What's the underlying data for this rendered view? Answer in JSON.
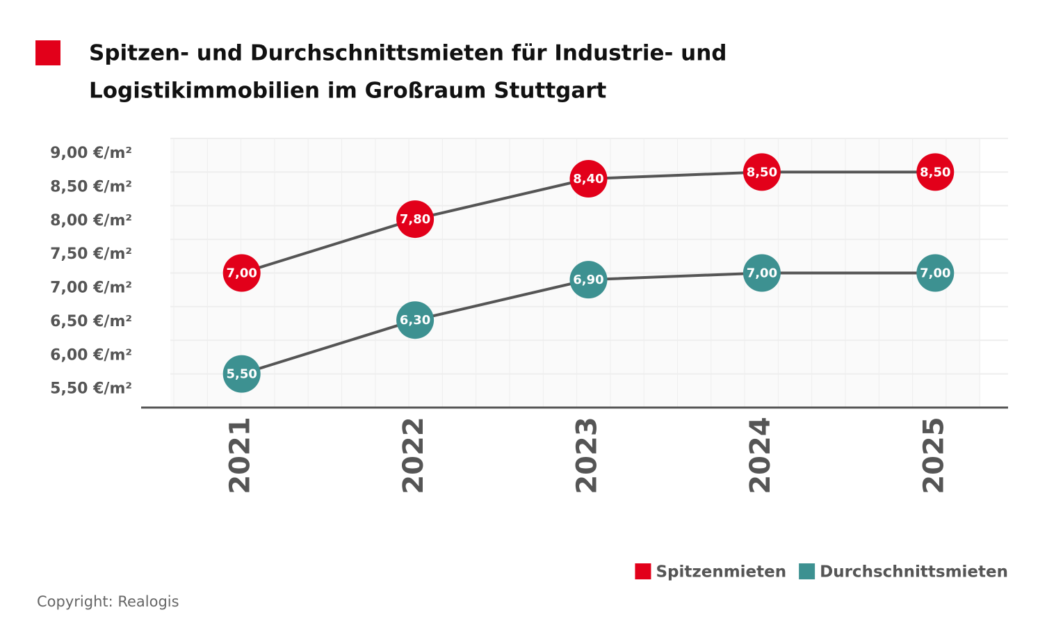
{
  "chart_data": {
    "type": "line",
    "title": "Spitzen- und Durchschnittsmieten für Industrie- und",
    "title_line2": "Logistikimmobilien im Großraum Stuttgart",
    "categories": [
      "2021",
      "2022",
      "2023",
      "2024",
      "2025"
    ],
    "series": [
      {
        "name": "Spitzenmieten",
        "color": "#e2001a",
        "values": [
          7.0,
          7.8,
          8.4,
          8.5,
          8.5
        ],
        "value_labels": [
          "7,00",
          "7,80",
          "8,40",
          "8,50",
          "8,50"
        ]
      },
      {
        "name": "Durchschnittsmieten",
        "color": "#3d9191",
        "values": [
          5.5,
          6.3,
          6.9,
          7.0,
          7.0
        ],
        "value_labels": [
          "5,50",
          "6,30",
          "6,90",
          "7,00",
          "7,00"
        ]
      }
    ],
    "ylim": [
      5,
      9
    ],
    "yticks": [
      {
        "value": 5.5,
        "label": "5,50 €/m²"
      },
      {
        "value": 6,
        "label": "6,00 €/m²"
      },
      {
        "value": 6.5,
        "label": "6,50 €/m²"
      },
      {
        "value": 7,
        "label": "7,00 €/m²"
      },
      {
        "value": 7.5,
        "label": "7,50 €/m²"
      },
      {
        "value": 8,
        "label": "8,00 €/m²"
      },
      {
        "value": 8.5,
        "label": "8,50 €/m²"
      },
      {
        "value": 9,
        "label": "9,00 €/m²"
      }
    ],
    "grid": true,
    "legend": "bottom-right",
    "line_color": "#555555",
    "source": "Copyright: Realogis"
  }
}
